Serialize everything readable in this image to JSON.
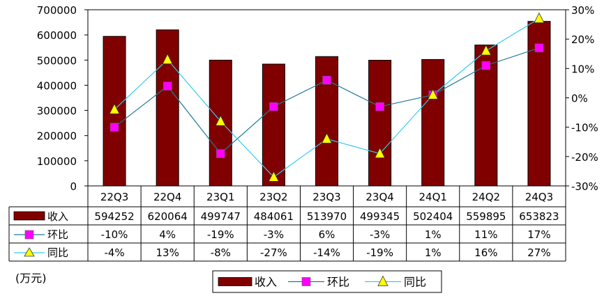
{
  "chart_data": {
    "type": "bar",
    "categories": [
      "22Q3",
      "22Q4",
      "23Q1",
      "23Q2",
      "23Q3",
      "23Q4",
      "24Q1",
      "24Q2",
      "24Q3"
    ],
    "series": [
      {
        "name": "收入",
        "kind": "bar",
        "axis": "left",
        "color": "#800000",
        "values": [
          594252,
          620064,
          499747,
          484061,
          513970,
          499345,
          502404,
          559895,
          653823
        ],
        "labels": [
          "594252",
          "620064",
          "499747",
          "484061",
          "513970",
          "499345",
          "502404",
          "559895",
          "653823"
        ]
      },
      {
        "name": "环比",
        "kind": "line",
        "axis": "right",
        "color": "#ff00ff",
        "line_color": "#1f7a99",
        "marker": "square",
        "values": [
          -10,
          4,
          -19,
          -3,
          6,
          -3,
          1,
          11,
          17
        ],
        "labels": [
          "-10%",
          "4%",
          "-19%",
          "-3%",
          "6%",
          "-3%",
          "1%",
          "11%",
          "17%"
        ]
      },
      {
        "name": "同比",
        "kind": "line",
        "axis": "right",
        "color": "#ffff00",
        "line_color": "#33ccee",
        "marker": "triangle",
        "values": [
          -4,
          13,
          -8,
          -27,
          -14,
          -19,
          1,
          16,
          27
        ],
        "labels": [
          "-4%",
          "13%",
          "-8%",
          "-27%",
          "-14%",
          "-19%",
          "1%",
          "16%",
          "27%"
        ]
      }
    ],
    "left_axis": {
      "min": 0,
      "max": 700000,
      "ticks": [
        "0",
        "100000",
        "200000",
        "300000",
        "400000",
        "500000",
        "600000",
        "700000"
      ]
    },
    "right_axis": {
      "min": -30,
      "max": 30,
      "ticks": [
        "-30%",
        "-20%",
        "-10%",
        "0%",
        "10%",
        "20%",
        "30%"
      ]
    },
    "unit_label": "(万元)",
    "grid": false,
    "legend_position": "bottom",
    "data_table": true
  }
}
